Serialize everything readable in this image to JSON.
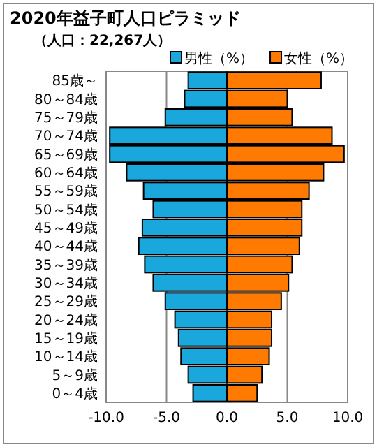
{
  "chart_data": {
    "type": "bar",
    "orientation": "horizontal",
    "stacked": true,
    "title": "2020年益子町人口ピラミッド",
    "subtitle": "（人口：22,267人）",
    "categories": [
      "85歳～",
      "80～84歳",
      "75～79歳",
      "70～74歳",
      "65～69歳",
      "60～64歳",
      "55～59歳",
      "50～54歳",
      "45～49歳",
      "40～44歳",
      "35～39歳",
      "30～34歳",
      "25～29歳",
      "20～24歳",
      "15～19歳",
      "10～14歳",
      "5～9歳",
      "0～4歳"
    ],
    "series": [
      {
        "name": "男性（%）",
        "color": "#1aa8dc",
        "values": [
          -3.2,
          -3.5,
          -5.1,
          -9.7,
          -9.7,
          -8.3,
          -6.9,
          -6.1,
          -7.0,
          -7.3,
          -6.8,
          -6.1,
          -5.1,
          -4.3,
          -4.0,
          -3.8,
          -3.2,
          -2.8
        ]
      },
      {
        "name": "女性（%）",
        "color": "#ff7a00",
        "values": [
          7.8,
          5.0,
          5.4,
          8.7,
          9.7,
          8.0,
          6.8,
          6.2,
          6.2,
          6.0,
          5.4,
          5.1,
          4.5,
          3.7,
          3.7,
          3.5,
          2.9,
          2.5
        ]
      }
    ],
    "xlim": [
      -10,
      10
    ],
    "xticks": [
      {
        "value": -10,
        "label": "-10.0"
      },
      {
        "value": -5,
        "label": "-5.0"
      },
      {
        "value": 0,
        "label": "0.0"
      },
      {
        "value": 5,
        "label": "5.0"
      },
      {
        "value": 10,
        "label": "10.0"
      }
    ],
    "grid": "x",
    "legend": "top right"
  }
}
